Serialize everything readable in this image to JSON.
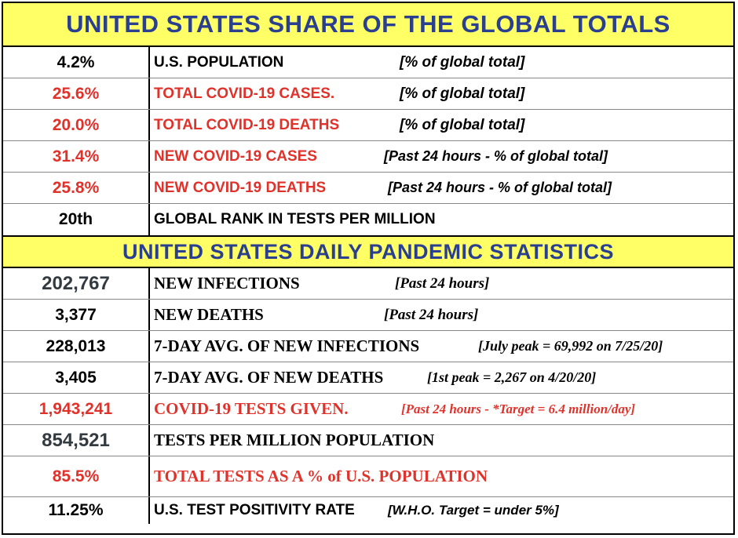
{
  "section1": {
    "title": "UNITED STATES SHARE OF THE GLOBAL TOTALS",
    "rows": [
      {
        "value": "4.2%",
        "label": "U.S. POPULATION",
        "note": "[% of global total]"
      },
      {
        "value": "25.6%",
        "label": "TOTAL COVID-19 CASES.",
        "note": "[% of global total]"
      },
      {
        "value": "20.0%",
        "label": "TOTAL COVID-19 DEATHS",
        "note": "[% of global total]"
      },
      {
        "value": "31.4%",
        "label": "NEW COVID-19 CASES",
        "note": "[Past 24 hours - % of global total]"
      },
      {
        "value": "25.8%",
        "label": "NEW COVID-19 DEATHS",
        "note": "[Past 24 hours - % of global total]"
      },
      {
        "value": "20th",
        "label": "GLOBAL RANK IN TESTS PER MILLION",
        "note": ""
      }
    ]
  },
  "section2": {
    "title": "UNITED STATES DAILY PANDEMIC STATISTICS",
    "rows": [
      {
        "value": "202,767",
        "label": "NEW INFECTIONS",
        "note": "[Past 24 hours]"
      },
      {
        "value": "3,377",
        "label": "NEW DEATHS",
        "note": "[Past 24 hours]"
      },
      {
        "value": "228,013",
        "label": "7-DAY AVG. OF NEW INFECTIONS",
        "note": "[July peak = 69,992 on 7/25/20]"
      },
      {
        "value": "3,405",
        "label": "7-DAY AVG. OF NEW DEATHS",
        "note": "[1st peak = 2,267 on 4/20/20]"
      },
      {
        "value": "1,943,241",
        "label": "COVID-19  TESTS GIVEN.",
        "note": "[Past 24 hours - *Target = 6.4 million/day]"
      },
      {
        "value": "854,521",
        "label": "TESTS PER MILLION POPULATION",
        "note": ""
      },
      {
        "value": "85.5%",
        "label": "TOTAL TESTS AS A % of U.S. POPULATION",
        "note": ""
      },
      {
        "value": "11.25%",
        "label": "U.S. TEST POSITIVITY RATE",
        "note": "[W.H.O. Target = under 5%]"
      }
    ]
  },
  "colors": {
    "banner_bg": "#ffff66",
    "banner_text": "#2a3f8f",
    "red": "#e0322b",
    "black": "#000000",
    "gray": "#333a40"
  }
}
